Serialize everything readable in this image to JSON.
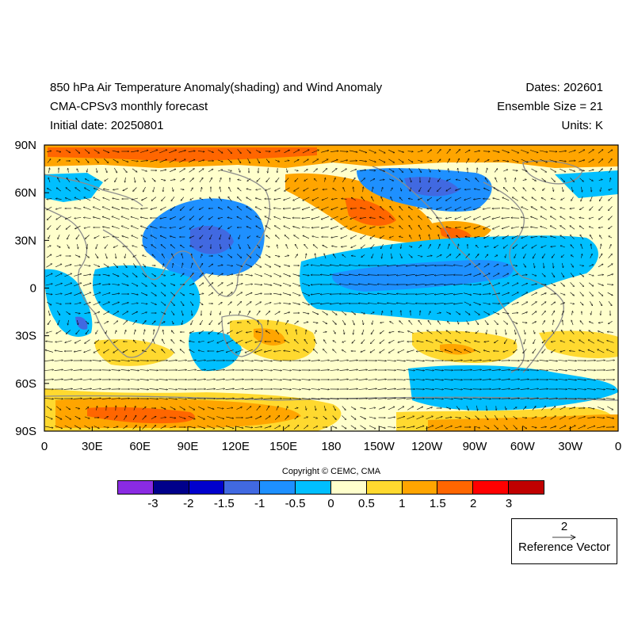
{
  "header": {
    "title": "850 hPa Air Temperature Anomaly(shading) and Wind Anomaly",
    "subtitle": "CMA-CPSv3 monthly forecast",
    "initial_date": "Initial date: 20250801",
    "dates": "Dates: 202601",
    "ensemble": "Ensemble Size = 21",
    "units": "Units: K"
  },
  "map": {
    "lat_labels": [
      "90N",
      "60N",
      "30N",
      "0",
      "30S",
      "60S",
      "90S"
    ],
    "lon_labels": [
      "0",
      "30E",
      "60E",
      "90E",
      "120E",
      "150E",
      "180",
      "150W",
      "120W",
      "90W",
      "60W",
      "30W",
      "0"
    ],
    "projection": "cylindrical equidistant",
    "lon_range": [
      0,
      360
    ],
    "lat_range": [
      -90,
      90
    ],
    "grid": false
  },
  "copyright": "Copyright © CEMC, CMA",
  "colorbar": {
    "colors": [
      "#8a2be2",
      "#00008b",
      "#0000cd",
      "#4169e1",
      "#1e90ff",
      "#00bfff",
      "#ffffcc",
      "#ffd92f",
      "#ffa500",
      "#ff6600",
      "#ff0000",
      "#c00000"
    ],
    "labels": [
      "-3",
      "-2",
      "-1.5",
      "-1",
      "-0.5",
      "0",
      "0.5",
      "1",
      "1.5",
      "2",
      "3"
    ]
  },
  "reference_vector": {
    "value": "2",
    "label": "Reference Vector"
  }
}
